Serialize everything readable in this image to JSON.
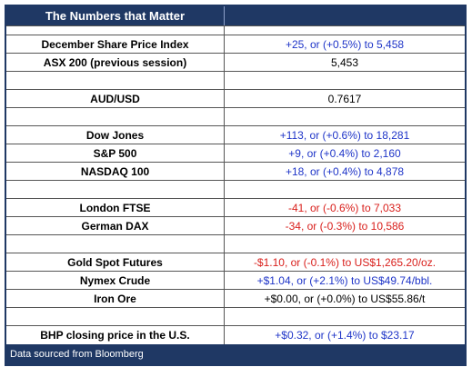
{
  "header": {
    "title": "The Numbers that Matter"
  },
  "groups": [
    [
      {
        "label": "December Share Price Index",
        "value": "+25, or (+0.5%) to 5,458",
        "color": "#1f35c8"
      },
      {
        "label": "ASX 200 (previous session)",
        "value": "5,453",
        "color": "#000000"
      }
    ],
    [
      {
        "label": "AUD/USD",
        "value": "0.7617",
        "color": "#000000"
      }
    ],
    [
      {
        "label": "Dow Jones",
        "value": "+113, or (+0.6%) to 18,281",
        "color": "#1f35c8"
      },
      {
        "label": "S&P 500",
        "value": "+9, or (+0.4%) to 2,160",
        "color": "#1f35c8"
      },
      {
        "label": "NASDAQ 100",
        "value": "+18, or (+0.4%) to 4,878",
        "color": "#1f35c8"
      }
    ],
    [
      {
        "label": "London FTSE",
        "value": "-41, or (-0.6%) to 7,033",
        "color": "#d9201c"
      },
      {
        "label": "German DAX",
        "value": "-34, or (-0.3%) to 10,586",
        "color": "#d9201c"
      }
    ],
    [
      {
        "label": "Gold Spot Futures",
        "value": "-$1.10, or (-0.1%) to US$1,265.20/oz.",
        "color": "#d9201c"
      },
      {
        "label": "Nymex Crude",
        "value": "+$1.04, or (+2.1%) to US$49.74/bbl.",
        "color": "#1f35c8"
      },
      {
        "label": "Iron Ore",
        "value": "+$0.00, or (+0.0%) to US$55.86/t",
        "color": "#000000"
      }
    ],
    [
      {
        "label": "BHP closing price in the U.S.",
        "value": "+$0.32, or (+1.4%) to $23.17",
        "color": "#1f35c8"
      }
    ]
  ],
  "footer": {
    "note": "Data sourced from Bloomberg"
  }
}
